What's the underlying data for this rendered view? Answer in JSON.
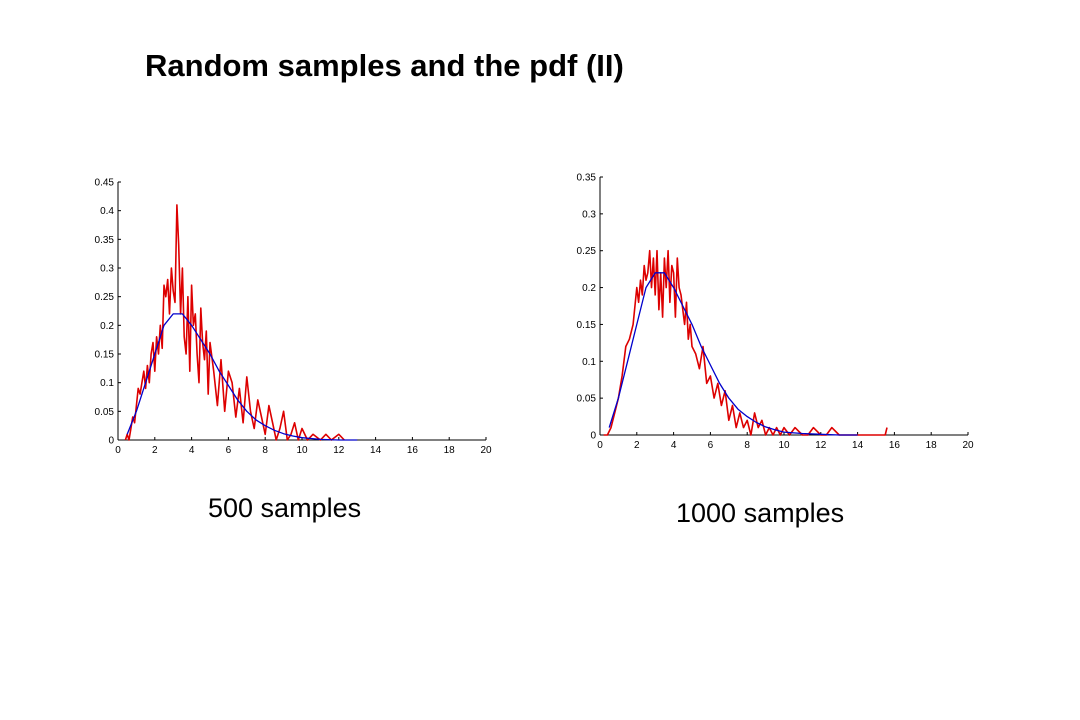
{
  "slide": {
    "title": "Random samples and the pdf (II)"
  },
  "chart_data": [
    {
      "type": "line",
      "caption": "500 samples",
      "xlim": [
        0,
        20
      ],
      "ylim": [
        0,
        0.45
      ],
      "xticks": [
        0,
        2,
        4,
        6,
        8,
        10,
        12,
        14,
        16,
        18,
        20
      ],
      "yticks": [
        0,
        0.05,
        0.1,
        0.15,
        0.2,
        0.25,
        0.3,
        0.35,
        0.4,
        0.45
      ],
      "series": [
        {
          "color": "#dd0000",
          "x": [
            0.4,
            0.5,
            0.6,
            0.7,
            0.8,
            0.9,
            1.0,
            1.1,
            1.2,
            1.3,
            1.4,
            1.5,
            1.6,
            1.7,
            1.8,
            1.9,
            2.0,
            2.1,
            2.2,
            2.3,
            2.4,
            2.5,
            2.6,
            2.7,
            2.8,
            2.9,
            3.0,
            3.1,
            3.2,
            3.3,
            3.4,
            3.5,
            3.6,
            3.7,
            3.8,
            3.9,
            4.0,
            4.1,
            4.2,
            4.3,
            4.4,
            4.5,
            4.6,
            4.7,
            4.8,
            4.9,
            5.0,
            5.2,
            5.4,
            5.6,
            5.8,
            6.0,
            6.2,
            6.4,
            6.6,
            6.8,
            7.0,
            7.2,
            7.4,
            7.6,
            7.8,
            8.0,
            8.2,
            8.4,
            8.6,
            8.8,
            9.0,
            9.2,
            9.4,
            9.6,
            9.8,
            10.0,
            10.3,
            10.6,
            11.0,
            11.3,
            11.6,
            12.0,
            12.3
          ],
          "y": [
            0.0,
            0.01,
            0.0,
            0.02,
            0.04,
            0.03,
            0.06,
            0.09,
            0.08,
            0.1,
            0.12,
            0.09,
            0.13,
            0.1,
            0.15,
            0.17,
            0.12,
            0.18,
            0.15,
            0.2,
            0.16,
            0.27,
            0.25,
            0.28,
            0.22,
            0.3,
            0.26,
            0.24,
            0.41,
            0.34,
            0.22,
            0.3,
            0.18,
            0.15,
            0.25,
            0.12,
            0.27,
            0.2,
            0.22,
            0.15,
            0.1,
            0.23,
            0.17,
            0.14,
            0.19,
            0.08,
            0.17,
            0.12,
            0.06,
            0.14,
            0.05,
            0.12,
            0.1,
            0.04,
            0.09,
            0.03,
            0.11,
            0.05,
            0.02,
            0.07,
            0.04,
            0.01,
            0.06,
            0.03,
            0.0,
            0.02,
            0.05,
            0.0,
            0.01,
            0.03,
            0.0,
            0.02,
            0.0,
            0.01,
            0.0,
            0.01,
            0.0,
            0.01,
            0.0
          ]
        },
        {
          "color": "#0000cc",
          "x": [
            0.5,
            1,
            1.5,
            2,
            2.5,
            3,
            3.5,
            4,
            4.5,
            5,
            5.5,
            6,
            6.5,
            7,
            7.5,
            8,
            8.5,
            9,
            9.5,
            10,
            11,
            12,
            13
          ],
          "y": [
            0.01,
            0.05,
            0.1,
            0.15,
            0.2,
            0.22,
            0.22,
            0.2,
            0.175,
            0.15,
            0.12,
            0.095,
            0.07,
            0.05,
            0.035,
            0.025,
            0.017,
            0.011,
            0.007,
            0.004,
            0.001,
            0.0,
            0.0
          ]
        }
      ]
    },
    {
      "type": "line",
      "caption": "1000 samples",
      "xlim": [
        0,
        20
      ],
      "ylim": [
        0,
        0.35
      ],
      "xticks": [
        0,
        2,
        4,
        6,
        8,
        10,
        12,
        14,
        16,
        18,
        20
      ],
      "yticks": [
        0,
        0.05,
        0.1,
        0.15,
        0.2,
        0.25,
        0.3,
        0.35
      ],
      "series": [
        {
          "color": "#dd0000",
          "x": [
            0.2,
            0.4,
            0.6,
            0.8,
            1.0,
            1.2,
            1.4,
            1.6,
            1.8,
            2.0,
            2.1,
            2.2,
            2.3,
            2.4,
            2.5,
            2.6,
            2.7,
            2.8,
            2.9,
            3.0,
            3.1,
            3.2,
            3.3,
            3.4,
            3.5,
            3.6,
            3.7,
            3.8,
            3.9,
            4.0,
            4.1,
            4.2,
            4.3,
            4.4,
            4.5,
            4.6,
            4.7,
            4.8,
            4.9,
            5.0,
            5.2,
            5.4,
            5.6,
            5.8,
            6.0,
            6.2,
            6.4,
            6.6,
            6.8,
            7.0,
            7.2,
            7.4,
            7.6,
            7.8,
            8.0,
            8.2,
            8.4,
            8.6,
            8.8,
            9.0,
            9.2,
            9.4,
            9.6,
            9.8,
            10.0,
            10.3,
            10.6,
            11.0,
            11.3,
            11.6,
            12.0,
            12.3,
            12.6,
            13.0,
            15.5,
            15.6
          ],
          "y": [
            0.0,
            0.0,
            0.01,
            0.03,
            0.05,
            0.08,
            0.12,
            0.13,
            0.15,
            0.2,
            0.18,
            0.21,
            0.19,
            0.23,
            0.21,
            0.22,
            0.25,
            0.2,
            0.24,
            0.19,
            0.25,
            0.17,
            0.22,
            0.16,
            0.24,
            0.2,
            0.25,
            0.18,
            0.23,
            0.22,
            0.16,
            0.24,
            0.2,
            0.19,
            0.17,
            0.15,
            0.18,
            0.13,
            0.15,
            0.12,
            0.11,
            0.09,
            0.12,
            0.07,
            0.08,
            0.05,
            0.07,
            0.04,
            0.06,
            0.02,
            0.04,
            0.01,
            0.03,
            0.01,
            0.02,
            0.0,
            0.03,
            0.01,
            0.02,
            0.0,
            0.01,
            0.0,
            0.01,
            0.0,
            0.01,
            0.0,
            0.01,
            0.0,
            0.0,
            0.01,
            0.0,
            0.0,
            0.01,
            0.0,
            0.0,
            0.01
          ]
        },
        {
          "color": "#0000cc",
          "x": [
            0.5,
            1,
            1.5,
            2,
            2.5,
            3,
            3.5,
            4,
            4.5,
            5,
            5.5,
            6,
            6.5,
            7,
            7.5,
            8,
            8.5,
            9,
            9.5,
            10,
            11,
            12,
            13,
            14
          ],
          "y": [
            0.01,
            0.05,
            0.1,
            0.15,
            0.2,
            0.22,
            0.22,
            0.2,
            0.175,
            0.15,
            0.12,
            0.095,
            0.07,
            0.05,
            0.035,
            0.025,
            0.017,
            0.011,
            0.007,
            0.004,
            0.002,
            0.001,
            0.0,
            0.0
          ]
        }
      ]
    }
  ]
}
